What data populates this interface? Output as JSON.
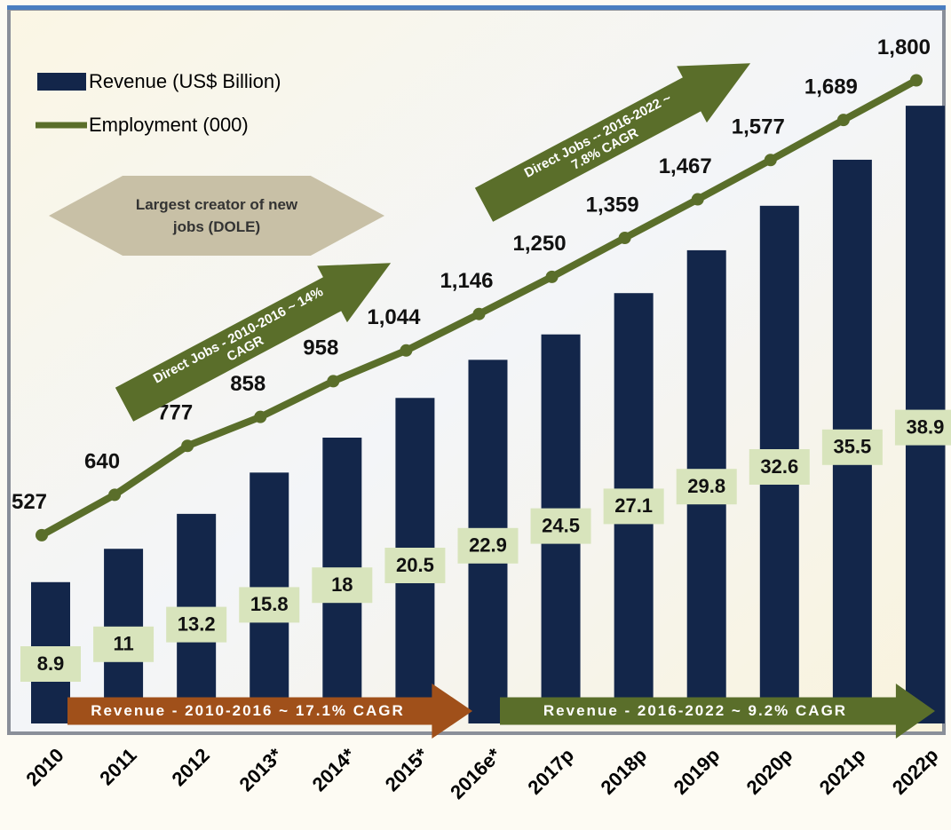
{
  "chart_data": {
    "type": "bar",
    "categories": [
      "2010",
      "2011",
      "2012",
      "2013*",
      "2014*",
      "2015*",
      "2016e*",
      "2017p",
      "2018p",
      "2019p",
      "2020p",
      "2021p",
      "2022p"
    ],
    "series": [
      {
        "name": "Revenue (US$ Billion)",
        "color": "#13264a",
        "values": [
          8.9,
          11,
          13.2,
          15.8,
          18,
          20.5,
          22.9,
          24.5,
          27.1,
          29.8,
          32.6,
          35.5,
          38.9
        ]
      },
      {
        "name": "Employment (000)",
        "type": "line",
        "axis": "y2",
        "color": "#5a6e2a",
        "values": [
          527,
          640,
          777,
          858,
          958,
          1044,
          1146,
          1250,
          1359,
          1467,
          1577,
          1689,
          1800
        ],
        "value_labels": [
          "527",
          "640",
          "777",
          "858",
          "958",
          "1,044",
          "1,146",
          "1,250",
          "1,359",
          "1,467",
          "1,577",
          "1,689",
          "1,800"
        ]
      }
    ],
    "ylim": [
      0,
      45
    ],
    "y2lim": [
      0,
      2000
    ],
    "annotations": [
      "Largest creator of new jobs (DOLE)",
      "Direct Jobs - 2010-2016 ~ 14% CAGR",
      "Direct Jobs -- 2016-2022 ~ 7.8% CAGR",
      "Revenue - 2010-2016 ~ 17.1% CAGR",
      "Revenue - 2016-2022 ~ 9.2% CAGR"
    ]
  }
}
